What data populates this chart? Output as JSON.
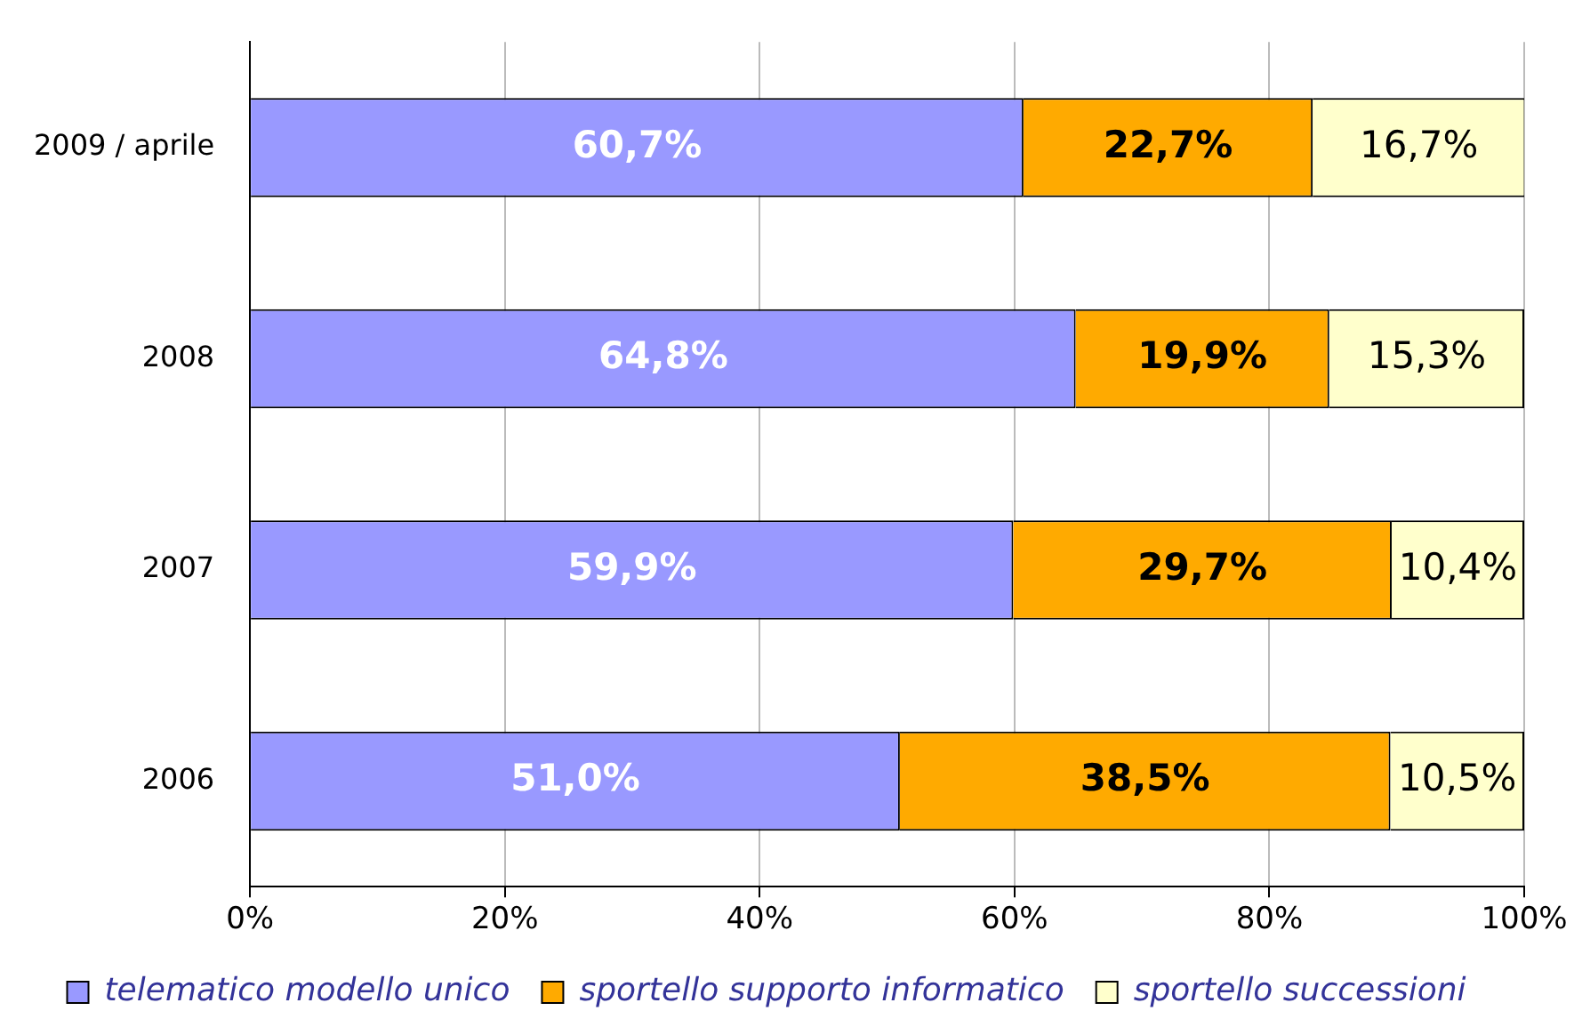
{
  "chart_data": {
    "type": "bar",
    "orientation": "horizontal",
    "stacked": true,
    "categories": [
      "2009 / aprile",
      "2008",
      "2007",
      "2006"
    ],
    "series": [
      {
        "name": "telematico modello unico",
        "color": "#9999ff",
        "values": [
          60.7,
          64.8,
          59.9,
          51.0
        ],
        "value_labels": [
          "60,7%",
          "64,8%",
          "59,9%",
          "51,0%"
        ]
      },
      {
        "name": "sportello supporto informatico",
        "color": "#ffaa00",
        "values": [
          22.7,
          19.9,
          29.7,
          38.5
        ],
        "value_labels": [
          "22,7%",
          "19,9%",
          "29,7%",
          "38,5%"
        ]
      },
      {
        "name": "sportello successioni",
        "color": "#ffffcc",
        "values": [
          16.7,
          15.3,
          10.4,
          10.5
        ],
        "value_labels": [
          "16,7%",
          "15,3%",
          "10,4%",
          "10,5%"
        ]
      }
    ],
    "xlim": [
      0,
      100
    ],
    "xticks": [
      {
        "value": 0,
        "label": "0%"
      },
      {
        "value": 20,
        "label": "20%"
      },
      {
        "value": 40,
        "label": "40%"
      },
      {
        "value": 60,
        "label": "60%"
      },
      {
        "value": 80,
        "label": "80%"
      },
      {
        "value": 100,
        "label": "100%"
      }
    ],
    "grid": "x",
    "legend": "bottom"
  }
}
